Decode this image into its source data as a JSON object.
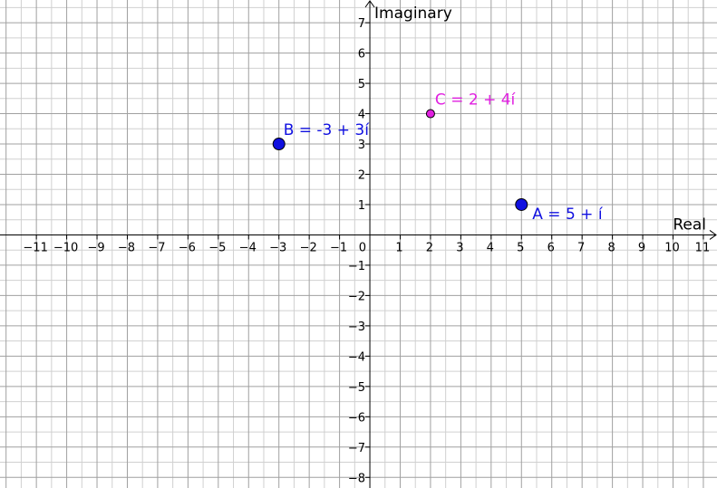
{
  "colors": {
    "background": "#ffffff",
    "grid_minor": "#d0d0d0",
    "grid_major": "#a0a0a0",
    "axis": "#000000",
    "point_blue": "#1010e0",
    "point_magenta": "#e020e0"
  },
  "chart_data": {
    "type": "scatter",
    "title": "",
    "xlabel": "Real",
    "ylabel": "Imaginary",
    "xlim": [
      -12.2,
      11.45
    ],
    "ylim": [
      -8.35,
      7.75
    ],
    "grid": true,
    "x_ticks": [
      -11,
      -10,
      -9,
      -8,
      -7,
      -6,
      -5,
      -4,
      -3,
      -2,
      -1,
      0,
      1,
      2,
      3,
      4,
      5,
      6,
      7,
      8,
      9,
      10,
      11
    ],
    "y_ticks": [
      -8,
      -7,
      -6,
      -5,
      -4,
      -3,
      -2,
      -1,
      1,
      2,
      3,
      4,
      5,
      6,
      7
    ],
    "x_tick_labels": [
      "−11",
      "−10",
      "−9",
      "−8",
      "−7",
      "−6",
      "−5",
      "−4",
      "−3",
      "−2",
      "−1",
      "0",
      "1",
      "2",
      "3",
      "4",
      "5",
      "6",
      "7",
      "8",
      "9",
      "10",
      "11"
    ],
    "y_tick_labels": [
      "−8",
      "−7",
      "−6",
      "−5",
      "−4",
      "−3",
      "−2",
      "−1",
      "1",
      "2",
      "3",
      "4",
      "5",
      "6",
      "7"
    ],
    "points": [
      {
        "name": "A",
        "label": "A = 5 + í",
        "x": 5,
        "y": 1,
        "color": "#1010e0",
        "size": "large",
        "label_position": "bottom-right"
      },
      {
        "name": "B",
        "label": "B = -3 + 3í",
        "x": -3,
        "y": 3,
        "color": "#1010e0",
        "size": "large",
        "label_position": "top-right"
      },
      {
        "name": "C",
        "label": "C = 2 + 4í",
        "x": 2,
        "y": 4,
        "color": "#e020e0",
        "size": "small",
        "label_position": "top-right"
      }
    ]
  }
}
